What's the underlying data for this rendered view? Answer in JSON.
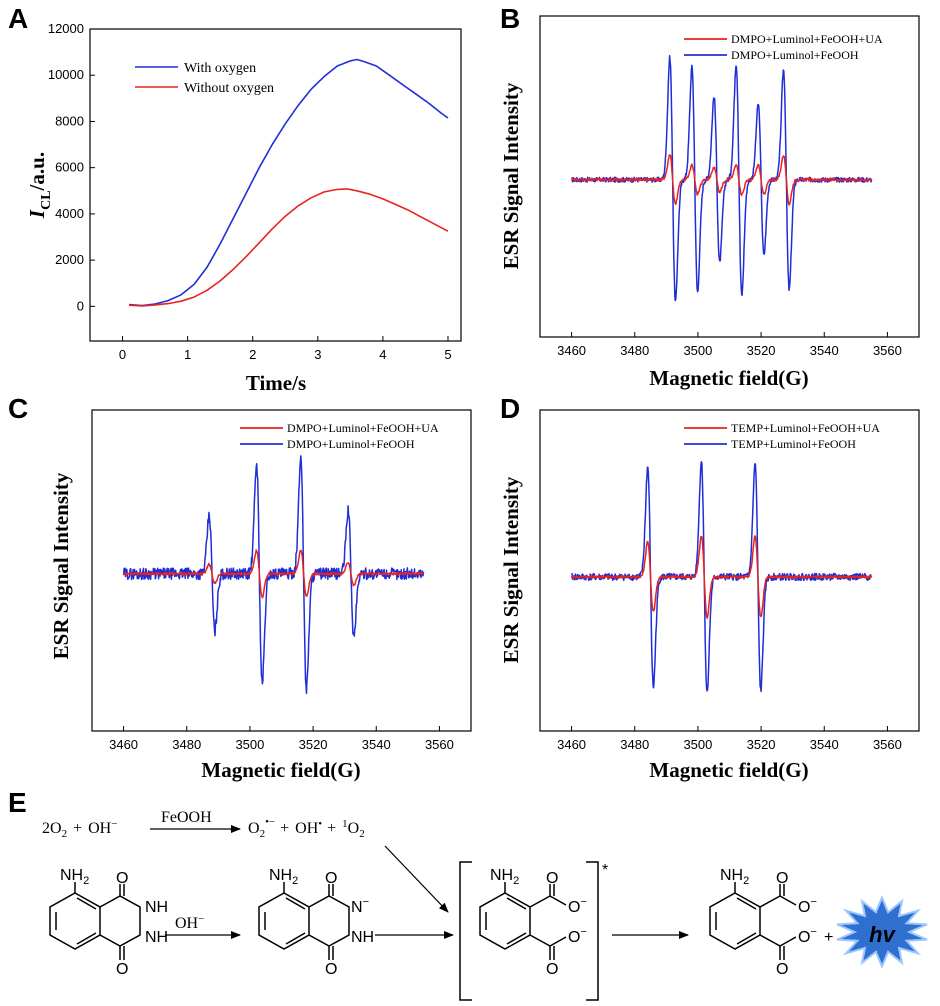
{
  "panel_letters": {
    "a": "A",
    "b": "B",
    "c": "C",
    "d": "D",
    "e": "E"
  },
  "colors": {
    "red": "#e8231f",
    "blue": "#1f2fd8",
    "hv_fill": "#2f6fd0",
    "hv_edge": "#9cc6ff"
  },
  "chart_data": [
    {
      "id": "A",
      "type": "line",
      "xlabel": "Time/s",
      "ylabel_main": "I",
      "ylabel_sub": "CL",
      "ylabel_unit": "/a.u.",
      "xlim": [
        -0.5,
        5.2
      ],
      "ylim": [
        -1500,
        12000
      ],
      "xticks": [
        0,
        1,
        2,
        3,
        4,
        5
      ],
      "yticks": [
        0,
        2000,
        4000,
        6000,
        8000,
        10000,
        12000
      ],
      "legend_position": "top-left",
      "series": [
        {
          "name": "With oxygen",
          "color": "#1f2fd8",
          "x": [
            0.1,
            0.3,
            0.5,
            0.7,
            0.9,
            1.1,
            1.3,
            1.5,
            1.7,
            1.9,
            2.1,
            2.3,
            2.5,
            2.7,
            2.9,
            3.1,
            3.3,
            3.5,
            3.6,
            3.7,
            3.9,
            4.1,
            4.3,
            4.5,
            4.7,
            4.9,
            5.0
          ],
          "y": [
            80,
            30,
            100,
            250,
            500,
            950,
            1700,
            2700,
            3800,
            4900,
            6000,
            7000,
            7900,
            8700,
            9400,
            9950,
            10400,
            10620,
            10680,
            10600,
            10400,
            10000,
            9600,
            9200,
            8800,
            8350,
            8150
          ]
        },
        {
          "name": "Without oxygen",
          "color": "#e8231f",
          "x": [
            0.1,
            0.3,
            0.5,
            0.7,
            0.9,
            1.1,
            1.3,
            1.5,
            1.7,
            1.9,
            2.1,
            2.3,
            2.5,
            2.7,
            2.9,
            3.1,
            3.3,
            3.45,
            3.6,
            3.8,
            4.0,
            4.2,
            4.4,
            4.6,
            4.8,
            5.0
          ],
          "y": [
            50,
            20,
            60,
            120,
            220,
            400,
            700,
            1100,
            1600,
            2150,
            2750,
            3350,
            3900,
            4350,
            4700,
            4950,
            5060,
            5080,
            5000,
            4850,
            4650,
            4400,
            4150,
            3850,
            3550,
            3250
          ]
        }
      ]
    },
    {
      "id": "B",
      "type": "line",
      "xlabel": "Magnetic field(G)",
      "ylabel": "ESR Signal Intensity",
      "xlim": [
        3450,
        3570
      ],
      "xticks": [
        3460,
        3480,
        3500,
        3520,
        3540,
        3560
      ],
      "legend_position": "top-right",
      "data_range": [
        3460,
        3555
      ],
      "series": [
        {
          "name": "DMPO+Luminol+FeOOH+UA",
          "color": "#e8231f",
          "peaks": [
            3492,
            3499,
            3506,
            3513,
            3520,
            3528
          ],
          "amplitudes": [
            0.2,
            0.12,
            0.1,
            0.12,
            0.12,
            0.2
          ],
          "noise": 0.01
        },
        {
          "name": "DMPO+Luminol+FeOOH",
          "color": "#1f2fd8",
          "peaks": [
            3492,
            3499,
            3506,
            3513,
            3520,
            3528
          ],
          "amplitudes": [
            1.0,
            0.92,
            0.68,
            0.95,
            0.62,
            0.9
          ],
          "noise": 0.02
        }
      ]
    },
    {
      "id": "C",
      "type": "line",
      "xlabel": "Magnetic field(G)",
      "ylabel": "ESR Signal Intensity",
      "xlim": [
        3450,
        3570
      ],
      "xticks": [
        3460,
        3480,
        3500,
        3520,
        3540,
        3560
      ],
      "legend_position": "top-right",
      "data_range": [
        3460,
        3555
      ],
      "series": [
        {
          "name": "DMPO+Luminol+FeOOH+UA",
          "color": "#e8231f",
          "peaks": [
            3488,
            3503,
            3517,
            3532
          ],
          "amplitudes": [
            0.08,
            0.2,
            0.2,
            0.1
          ],
          "noise": 0.01
        },
        {
          "name": "DMPO+Luminol+FeOOH",
          "color": "#1f2fd8",
          "peaks": [
            3488,
            3503,
            3517,
            3532
          ],
          "amplitudes": [
            0.5,
            0.95,
            1.0,
            0.55
          ],
          "noise": 0.05
        }
      ]
    },
    {
      "id": "D",
      "type": "line",
      "xlabel": "Magnetic field(G)",
      "ylabel": "ESR Signal Intensity",
      "xlim": [
        3450,
        3570
      ],
      "xticks": [
        3460,
        3480,
        3500,
        3520,
        3540,
        3560
      ],
      "legend_position": "top-right",
      "data_range": [
        3460,
        3555
      ],
      "series": [
        {
          "name": "TEMP+Luminol+FeOOH+UA",
          "color": "#e8231f",
          "peaks": [
            3485,
            3502,
            3519
          ],
          "amplitudes": [
            0.3,
            0.35,
            0.35
          ],
          "noise": 0.01
        },
        {
          "name": "TEMP+Luminol+FeOOH",
          "color": "#1f2fd8",
          "peaks": [
            3485,
            3502,
            3519
          ],
          "amplitudes": [
            0.95,
            1.0,
            0.98
          ],
          "noise": 0.03
        }
      ]
    }
  ],
  "scheme": {
    "reaction1": {
      "reactant_coef": "2",
      "reactant_o": "O",
      "reactant_sub": "2",
      "plus1": "+",
      "hydroxide": "OH",
      "minus": "−",
      "catalyst": "FeOOH",
      "superoxide_o": "O",
      "superoxide_sub": "2",
      "superoxide_sup": "•−",
      "plus2": "+",
      "radical_oh": "OH",
      "radical_dot": "•",
      "plus3": "+",
      "singlet_sup": "1",
      "singlet_o": "O",
      "singlet_sub": "2"
    },
    "nh2": "NH",
    "nh2_sub": "2",
    "carbonyl_o": "O",
    "nh": "NH",
    "nh_anion": "N",
    "anion_charge": "−",
    "carboxylate": "O",
    "arrow_label_oh": "OH",
    "excited_marker": "*",
    "plus": "+",
    "hv": "hv"
  }
}
